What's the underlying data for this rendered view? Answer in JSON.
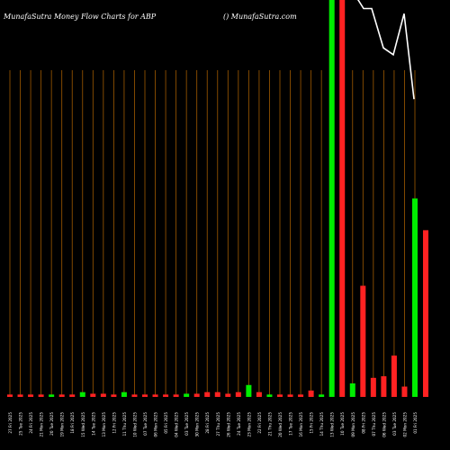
{
  "header": {
    "title": "MunafaSutra  Money Flow  Charts for ABP",
    "brand": "() MunafaSutra.com"
  },
  "chart_data": {
    "type": "bar",
    "title": "MunafaSutra  Money Flow  Charts for ABP",
    "ylim": [
      0,
      100
    ],
    "colors": {
      "up": "#00ee00",
      "down": "#ff2222",
      "grid": "#a05a00",
      "line": "#ffffff",
      "background": "#000000"
    },
    "categories": [
      "27 Fri 2025",
      "25 Tue 2025",
      "24 Fri 2025",
      "21 Mon 2025",
      "20 Tue 2025",
      "19 Mon 2025",
      "18 Fri 2025",
      "15 Wed 2025",
      "14 Tue 2025",
      "13 Mon 2025",
      "12 Fri 2025",
      "11 Thu 2025",
      "10 Wed 2025",
      "07 Tue 2025",
      "06 Mon 2025",
      "05 Fri 2025",
      "04 Wed 2025",
      "03 Tue 2025",
      "30 Mon 2025",
      "28 Fri 2025",
      "27 Thu 2025",
      "26 Wed 2025",
      "24 Tue 2025",
      "23 Mon 2025",
      "22 Fri 2025",
      "21 Thu 2025",
      "20 Wed 2025",
      "17 Tue 2025",
      "16 Mon 2025",
      "15 Fri 2025",
      "14 Thu 2025",
      "13 Wed 2025",
      "10 Tue 2025",
      "09 Mon 2025",
      "08 Fri 2025",
      "07 Thu 2025",
      "06 Wed 2025",
      "03 Tue 2025",
      "02 Mon 2025",
      "01 Fri 2025"
    ],
    "values": [
      0.6,
      0.6,
      0.6,
      0.6,
      0.6,
      0.6,
      0.6,
      1.2,
      0.8,
      0.8,
      0.6,
      1.2,
      0.6,
      0.6,
      0.6,
      0.6,
      0.6,
      0.8,
      0.8,
      1.2,
      1.2,
      0.8,
      1.2,
      3.0,
      1.2,
      0.6,
      0.6,
      0.6,
      0.6,
      1.6,
      0.6,
      100,
      100,
      3.4,
      28,
      4.8,
      5.2,
      10.4,
      2.6,
      50
    ],
    "directions": [
      "down",
      "down",
      "down",
      "down",
      "up",
      "down",
      "down",
      "up",
      "down",
      "down",
      "down",
      "up",
      "down",
      "down",
      "down",
      "down",
      "down",
      "up",
      "down",
      "down",
      "down",
      "down",
      "down",
      "up",
      "down",
      "up",
      "down",
      "down",
      "down",
      "down",
      "up",
      "up",
      "down",
      "up",
      "down",
      "down",
      "down",
      "down",
      "down",
      "up"
    ],
    "extra_bar": {
      "value": 42,
      "direction": "down"
    },
    "price_line": [
      100,
      100,
      95,
      95,
      72,
      68,
      92,
      42
    ]
  }
}
